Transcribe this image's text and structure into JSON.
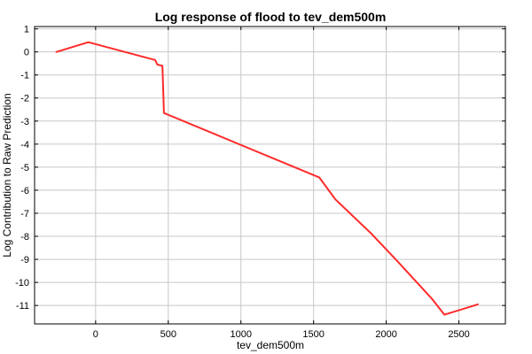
{
  "chart_data": {
    "type": "line",
    "title": "Log response of flood to tev_dem500m",
    "xlabel": "tev_dem500m",
    "ylabel": "Log Contribution to Raw Prediction",
    "xlim": [
      -420,
      2820
    ],
    "ylim": [
      -11.8,
      1.1
    ],
    "xticks": [
      0,
      500,
      1000,
      1500,
      2000,
      2500
    ],
    "yticks": [
      1,
      0,
      -1,
      -2,
      -3,
      -4,
      -5,
      -6,
      -7,
      -8,
      -9,
      -10,
      -11
    ],
    "grid": true,
    "series": [
      {
        "color": "#ff2a2a",
        "x": [
          -270,
          -50,
          410,
          425,
          460,
          470,
          1540,
          1650,
          1900,
          2080,
          2320,
          2400,
          2630
        ],
        "y": [
          0.0,
          0.42,
          -0.35,
          -0.55,
          -0.6,
          -2.65,
          -5.45,
          -6.4,
          -7.9,
          -9.1,
          -10.75,
          -11.4,
          -10.95
        ]
      }
    ]
  }
}
